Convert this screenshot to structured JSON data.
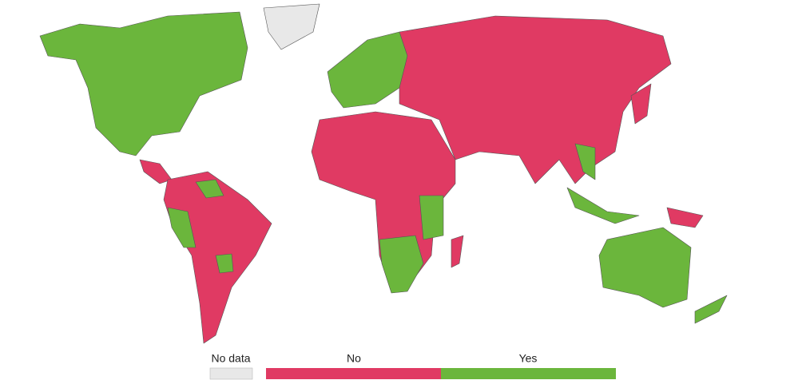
{
  "legend": {
    "items": [
      {
        "label": "No data",
        "color": "#e8e8e8"
      },
      {
        "label": "No",
        "color": "#e03a63"
      },
      {
        "label": "Yes",
        "color": "#6bb63c"
      }
    ]
  }
}
